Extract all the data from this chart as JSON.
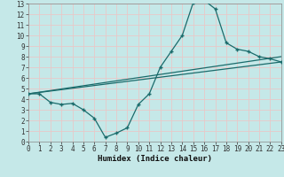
{
  "xlabel": "Humidex (Indice chaleur)",
  "bg_color": "#c5e8e8",
  "grid_color": "#d8eded",
  "line_color": "#1a6b6b",
  "xlim": [
    0,
    23
  ],
  "ylim": [
    0,
    13
  ],
  "xticks": [
    0,
    1,
    2,
    3,
    4,
    5,
    6,
    7,
    8,
    9,
    10,
    11,
    12,
    13,
    14,
    15,
    16,
    17,
    18,
    19,
    20,
    21,
    22,
    23
  ],
  "yticks": [
    0,
    1,
    2,
    3,
    4,
    5,
    6,
    7,
    8,
    9,
    10,
    11,
    12,
    13
  ],
  "main_x": [
    0,
    1,
    2,
    3,
    4,
    5,
    6,
    7,
    8,
    9,
    10,
    11,
    12,
    13,
    14,
    15,
    16,
    17,
    18,
    19,
    20,
    21,
    22,
    23
  ],
  "main_y": [
    4.5,
    4.5,
    3.7,
    3.5,
    3.6,
    3.0,
    2.2,
    0.4,
    0.8,
    1.3,
    3.5,
    4.5,
    7.0,
    8.5,
    10.0,
    13.1,
    13.3,
    12.5,
    9.3,
    8.7,
    8.5,
    8.0,
    7.8,
    7.5
  ],
  "line2_x": [
    0,
    23
  ],
  "line2_y": [
    4.5,
    7.5
  ],
  "line3_x": [
    0,
    23
  ],
  "line3_y": [
    4.5,
    8.0
  ]
}
